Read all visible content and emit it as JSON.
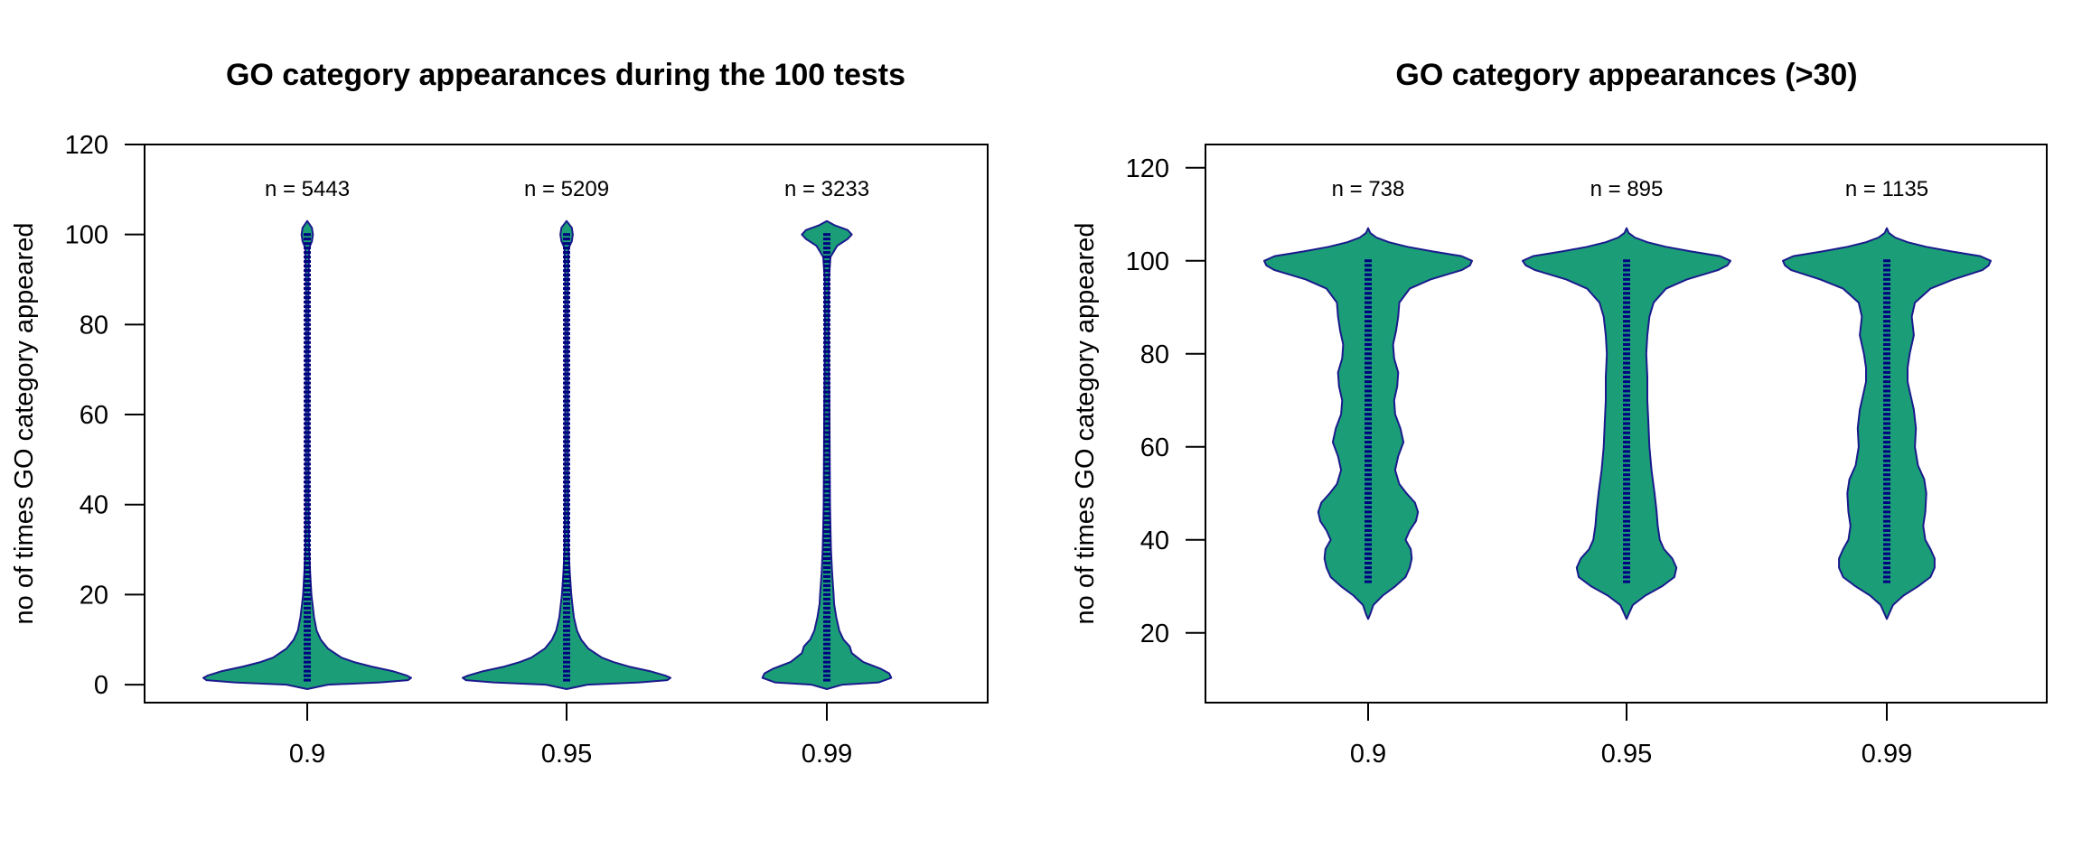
{
  "chart_data": [
    {
      "type": "violin",
      "title": "GO category appearances during the 100 tests",
      "xlabel": "",
      "ylabel": "no of times GO category appeared",
      "categories": [
        "0.9",
        "0.95",
        "0.99"
      ],
      "counts": [
        "n = 5443",
        "n = 5209",
        "n = 3233"
      ],
      "ylim": [
        -4,
        120
      ],
      "yticks": [
        0,
        20,
        40,
        60,
        80,
        100,
        120
      ],
      "grid": false,
      "fill_color": "#1b9e77",
      "outline_color": "#1a1a8c",
      "points_color": "#000080",
      "series": [
        {
          "category": "0.9",
          "value_range": [
            1,
            100
          ],
          "density": [
            [
              -1,
              0
            ],
            [
              0,
              0.2
            ],
            [
              0.5,
              0.7
            ],
            [
              1,
              0.97
            ],
            [
              1.5,
              1
            ],
            [
              2,
              0.96
            ],
            [
              3,
              0.82
            ],
            [
              4,
              0.62
            ],
            [
              5,
              0.45
            ],
            [
              6,
              0.33
            ],
            [
              8,
              0.2
            ],
            [
              10,
              0.13
            ],
            [
              12,
              0.09
            ],
            [
              15,
              0.065
            ],
            [
              18,
              0.05
            ],
            [
              20,
              0.04
            ],
            [
              25,
              0.028
            ],
            [
              30,
              0.018
            ],
            [
              40,
              0.014
            ],
            [
              50,
              0.013
            ],
            [
              60,
              0.013
            ],
            [
              70,
              0.012
            ],
            [
              80,
              0.012
            ],
            [
              90,
              0.013
            ],
            [
              97,
              0.018
            ],
            [
              98.5,
              0.045
            ],
            [
              100,
              0.055
            ],
            [
              101.5,
              0.045
            ],
            [
              103,
              0
            ]
          ]
        },
        {
          "category": "0.95",
          "value_range": [
            1,
            100
          ],
          "density": [
            [
              -1,
              0
            ],
            [
              0,
              0.2
            ],
            [
              0.5,
              0.7
            ],
            [
              1,
              0.97
            ],
            [
              1.5,
              1
            ],
            [
              2,
              0.95
            ],
            [
              3,
              0.8
            ],
            [
              4,
              0.6
            ],
            [
              5,
              0.45
            ],
            [
              6,
              0.34
            ],
            [
              8,
              0.21
            ],
            [
              10,
              0.14
            ],
            [
              12,
              0.1
            ],
            [
              15,
              0.07
            ],
            [
              18,
              0.055
            ],
            [
              20,
              0.045
            ],
            [
              25,
              0.03
            ],
            [
              30,
              0.02
            ],
            [
              40,
              0.016
            ],
            [
              50,
              0.014
            ],
            [
              60,
              0.014
            ],
            [
              70,
              0.013
            ],
            [
              80,
              0.013
            ],
            [
              90,
              0.014
            ],
            [
              97,
              0.02
            ],
            [
              98.5,
              0.05
            ],
            [
              100,
              0.06
            ],
            [
              101.5,
              0.05
            ],
            [
              103,
              0
            ]
          ]
        },
        {
          "category": "0.99",
          "value_range": [
            1,
            100
          ],
          "density": [
            [
              -1,
              0
            ],
            [
              0,
              0.15
            ],
            [
              0.5,
              0.5
            ],
            [
              1.5,
              0.62
            ],
            [
              2.5,
              0.6
            ],
            [
              3.5,
              0.52
            ],
            [
              5,
              0.35
            ],
            [
              7,
              0.24
            ],
            [
              8.5,
              0.22
            ],
            [
              10,
              0.16
            ],
            [
              12,
              0.12
            ],
            [
              15,
              0.09
            ],
            [
              18,
              0.07
            ],
            [
              20,
              0.065
            ],
            [
              25,
              0.05
            ],
            [
              30,
              0.04
            ],
            [
              35,
              0.035
            ],
            [
              40,
              0.03
            ],
            [
              50,
              0.028
            ],
            [
              60,
              0.025
            ],
            [
              70,
              0.02
            ],
            [
              80,
              0.018
            ],
            [
              90,
              0.02
            ],
            [
              95,
              0.035
            ],
            [
              97.5,
              0.1
            ],
            [
              99,
              0.2
            ],
            [
              100,
              0.24
            ],
            [
              101,
              0.2
            ],
            [
              102,
              0.08
            ],
            [
              103,
              0
            ]
          ]
        }
      ]
    },
    {
      "type": "violin",
      "title": "GO category appearances (>30)",
      "xlabel": "",
      "ylabel": "no of times GO category appeared",
      "categories": [
        "0.9",
        "0.95",
        "0.99"
      ],
      "counts": [
        "n = 738",
        "n = 895",
        "n = 1135"
      ],
      "ylim": [
        5,
        125
      ],
      "yticks": [
        20,
        40,
        60,
        80,
        100,
        120
      ],
      "grid": false,
      "fill_color": "#1b9e77",
      "outline_color": "#1a1a8c",
      "points_color": "#000080",
      "series": [
        {
          "category": "0.9",
          "value_range": [
            31,
            100
          ],
          "density": [
            [
              23,
              0
            ],
            [
              24,
              0.02
            ],
            [
              26,
              0.05
            ],
            [
              28,
              0.14
            ],
            [
              30,
              0.26
            ],
            [
              32,
              0.36
            ],
            [
              34,
              0.4
            ],
            [
              36,
              0.42
            ],
            [
              38,
              0.41
            ],
            [
              40,
              0.36
            ],
            [
              42,
              0.4
            ],
            [
              44,
              0.46
            ],
            [
              46,
              0.48
            ],
            [
              48,
              0.45
            ],
            [
              50,
              0.37
            ],
            [
              52,
              0.3
            ],
            [
              55,
              0.26
            ],
            [
              58,
              0.29
            ],
            [
              61,
              0.34
            ],
            [
              64,
              0.31
            ],
            [
              67,
              0.26
            ],
            [
              70,
              0.25
            ],
            [
              73,
              0.28
            ],
            [
              76,
              0.29
            ],
            [
              79,
              0.25
            ],
            [
              82,
              0.24
            ],
            [
              85,
              0.27
            ],
            [
              88,
              0.29
            ],
            [
              91,
              0.3
            ],
            [
              94,
              0.4
            ],
            [
              96,
              0.6
            ],
            [
              98,
              0.9
            ],
            [
              99,
              0.98
            ],
            [
              100,
              1
            ],
            [
              101,
              0.9
            ],
            [
              102,
              0.62
            ],
            [
              103,
              0.38
            ],
            [
              104,
              0.2
            ],
            [
              105,
              0.08
            ],
            [
              106,
              0.02
            ],
            [
              107,
              0
            ]
          ]
        },
        {
          "category": "0.95",
          "value_range": [
            31,
            100
          ],
          "density": [
            [
              23,
              0
            ],
            [
              24,
              0.02
            ],
            [
              26,
              0.06
            ],
            [
              28,
              0.18
            ],
            [
              30,
              0.34
            ],
            [
              32,
              0.46
            ],
            [
              34,
              0.48
            ],
            [
              36,
              0.44
            ],
            [
              38,
              0.36
            ],
            [
              40,
              0.32
            ],
            [
              43,
              0.3
            ],
            [
              46,
              0.29
            ],
            [
              50,
              0.27
            ],
            [
              55,
              0.24
            ],
            [
              60,
              0.22
            ],
            [
              65,
              0.21
            ],
            [
              70,
              0.2
            ],
            [
              75,
              0.2
            ],
            [
              80,
              0.19
            ],
            [
              84,
              0.2
            ],
            [
              88,
              0.22
            ],
            [
              91,
              0.26
            ],
            [
              94,
              0.38
            ],
            [
              96,
              0.58
            ],
            [
              98,
              0.88
            ],
            [
              99,
              0.97
            ],
            [
              100,
              1
            ],
            [
              101,
              0.9
            ],
            [
              102,
              0.62
            ],
            [
              103,
              0.38
            ],
            [
              104,
              0.2
            ],
            [
              105,
              0.08
            ],
            [
              106,
              0.02
            ],
            [
              107,
              0
            ]
          ]
        },
        {
          "category": "0.99",
          "value_range": [
            31,
            100
          ],
          "density": [
            [
              23,
              0
            ],
            [
              24,
              0.02
            ],
            [
              26,
              0.06
            ],
            [
              28,
              0.16
            ],
            [
              30,
              0.3
            ],
            [
              32,
              0.42
            ],
            [
              34,
              0.46
            ],
            [
              36,
              0.46
            ],
            [
              38,
              0.42
            ],
            [
              40,
              0.37
            ],
            [
              43,
              0.35
            ],
            [
              46,
              0.37
            ],
            [
              50,
              0.38
            ],
            [
              53,
              0.36
            ],
            [
              56,
              0.3
            ],
            [
              60,
              0.27
            ],
            [
              64,
              0.28
            ],
            [
              68,
              0.26
            ],
            [
              71,
              0.23
            ],
            [
              74,
              0.2
            ],
            [
              77,
              0.2
            ],
            [
              80,
              0.22
            ],
            [
              84,
              0.26
            ],
            [
              88,
              0.24
            ],
            [
              91,
              0.27
            ],
            [
              94,
              0.42
            ],
            [
              96,
              0.64
            ],
            [
              98,
              0.92
            ],
            [
              99,
              0.98
            ],
            [
              100,
              1
            ],
            [
              101,
              0.9
            ],
            [
              102,
              0.62
            ],
            [
              103,
              0.38
            ],
            [
              104,
              0.2
            ],
            [
              105,
              0.08
            ],
            [
              106,
              0.02
            ],
            [
              107,
              0
            ]
          ]
        }
      ]
    }
  ]
}
